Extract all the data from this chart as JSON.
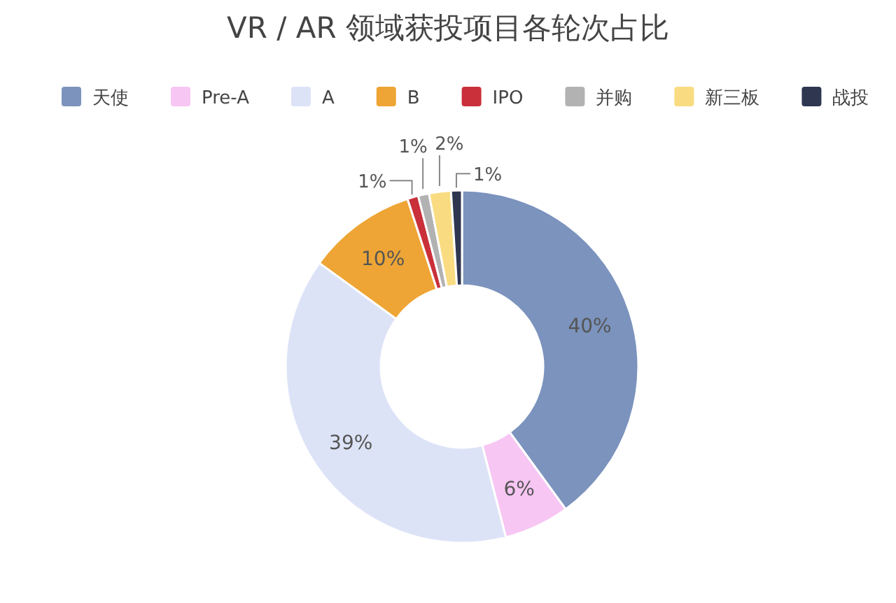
{
  "chart_data": {
    "type": "donut",
    "title": "VR / AR 领域获投项目各轮次占比",
    "categories": [
      "天使",
      "Pre-A",
      "A",
      "B",
      "IPO",
      "并购",
      "新三板",
      "战投"
    ],
    "values": [
      40,
      6,
      39,
      10,
      1,
      1,
      2,
      1
    ],
    "colors": [
      "#7b93bd",
      "#f7c6f3",
      "#dde3f7",
      "#eea535",
      "#c9303a",
      "#b2b2b2",
      "#f9dc81",
      "#2e3650"
    ],
    "value_labels": [
      "40%",
      "6%",
      "39%",
      "10%",
      "1%",
      "1%",
      "2%",
      "1%"
    ],
    "legend": "top"
  }
}
